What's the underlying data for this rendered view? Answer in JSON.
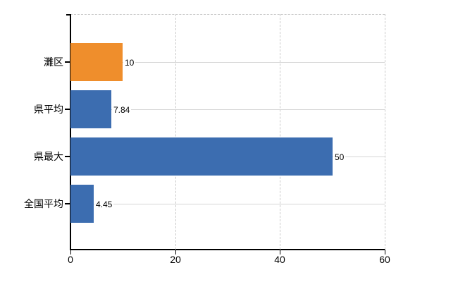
{
  "chart_data": {
    "type": "bar",
    "orientation": "horizontal",
    "title": "",
    "categories": [
      "灘区",
      "県平均",
      "県最大",
      "全国平均"
    ],
    "values": [
      10,
      7.84,
      50,
      4.45
    ],
    "value_labels": [
      "10",
      "7.84",
      "50",
      "4.45"
    ],
    "series": [
      {
        "name": "値",
        "values": [
          10,
          7.84,
          50,
          4.45
        ]
      }
    ],
    "bar_colors": [
      "#ef8e2c",
      "#3c6db0",
      "#3c6db0",
      "#3c6db0"
    ],
    "x_ticks": [
      0,
      20,
      40,
      60
    ],
    "x_tick_labels": [
      "0",
      "20",
      "40",
      "60"
    ],
    "xlim": [
      0,
      60
    ],
    "xlabel": "",
    "ylabel": "",
    "legend": "none",
    "grid": "dashed vertical gridlines at x ticks; solid gray leader line from each bar end to plot right edge"
  },
  "colors": {
    "highlight_bar": "#ef8e2c",
    "default_bar": "#3c6db0",
    "axis": "#000000",
    "gridline": "#c9c9c9",
    "leader_line": "#d6d6d6",
    "background": "#ffffff",
    "text": "#000000"
  }
}
